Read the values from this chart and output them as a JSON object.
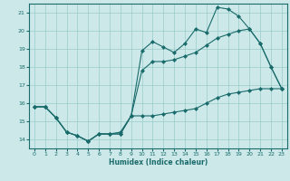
{
  "xlabel": "Humidex (Indice chaleur)",
  "bg_color": "#cce8e8",
  "grid_color": "#99cccc",
  "line_color": "#1a6b6b",
  "xlim": [
    -0.5,
    23.5
  ],
  "ylim": [
    13.5,
    21.5
  ],
  "yticks": [
    14,
    15,
    16,
    17,
    18,
    19,
    20,
    21
  ],
  "xticks": [
    0,
    1,
    2,
    3,
    4,
    5,
    6,
    7,
    8,
    9,
    10,
    11,
    12,
    13,
    14,
    15,
    16,
    17,
    18,
    19,
    20,
    21,
    22,
    23
  ],
  "series1_x": [
    0,
    1,
    2,
    3,
    4,
    5,
    6,
    7,
    8,
    9,
    10,
    11,
    12,
    13,
    14,
    15,
    16,
    17,
    18,
    19,
    20,
    21,
    22,
    23
  ],
  "series1_y": [
    15.8,
    15.8,
    15.2,
    14.4,
    14.2,
    13.9,
    14.3,
    14.3,
    14.3,
    15.3,
    18.9,
    19.4,
    19.1,
    18.8,
    19.3,
    20.1,
    19.9,
    21.3,
    21.2,
    20.8,
    20.1,
    19.3,
    18.0,
    16.8
  ],
  "series2_x": [
    0,
    1,
    2,
    3,
    4,
    5,
    6,
    7,
    8,
    9,
    10,
    11,
    12,
    13,
    14,
    15,
    16,
    17,
    18,
    19,
    20,
    21,
    22,
    23
  ],
  "series2_y": [
    15.8,
    15.8,
    15.2,
    14.4,
    14.2,
    13.9,
    14.3,
    14.3,
    14.4,
    15.3,
    17.8,
    18.3,
    18.3,
    18.4,
    18.6,
    18.8,
    19.2,
    19.6,
    19.8,
    20.0,
    20.1,
    19.3,
    18.0,
    16.8
  ],
  "series3_x": [
    0,
    1,
    2,
    3,
    4,
    5,
    6,
    7,
    8,
    9,
    10,
    11,
    12,
    13,
    14,
    15,
    16,
    17,
    18,
    19,
    20,
    21,
    22,
    23
  ],
  "series3_y": [
    15.8,
    15.8,
    15.2,
    14.4,
    14.2,
    13.9,
    14.3,
    14.3,
    14.3,
    15.3,
    15.3,
    15.3,
    15.4,
    15.5,
    15.6,
    15.7,
    16.0,
    16.3,
    16.5,
    16.6,
    16.7,
    16.8,
    16.8,
    16.8
  ]
}
